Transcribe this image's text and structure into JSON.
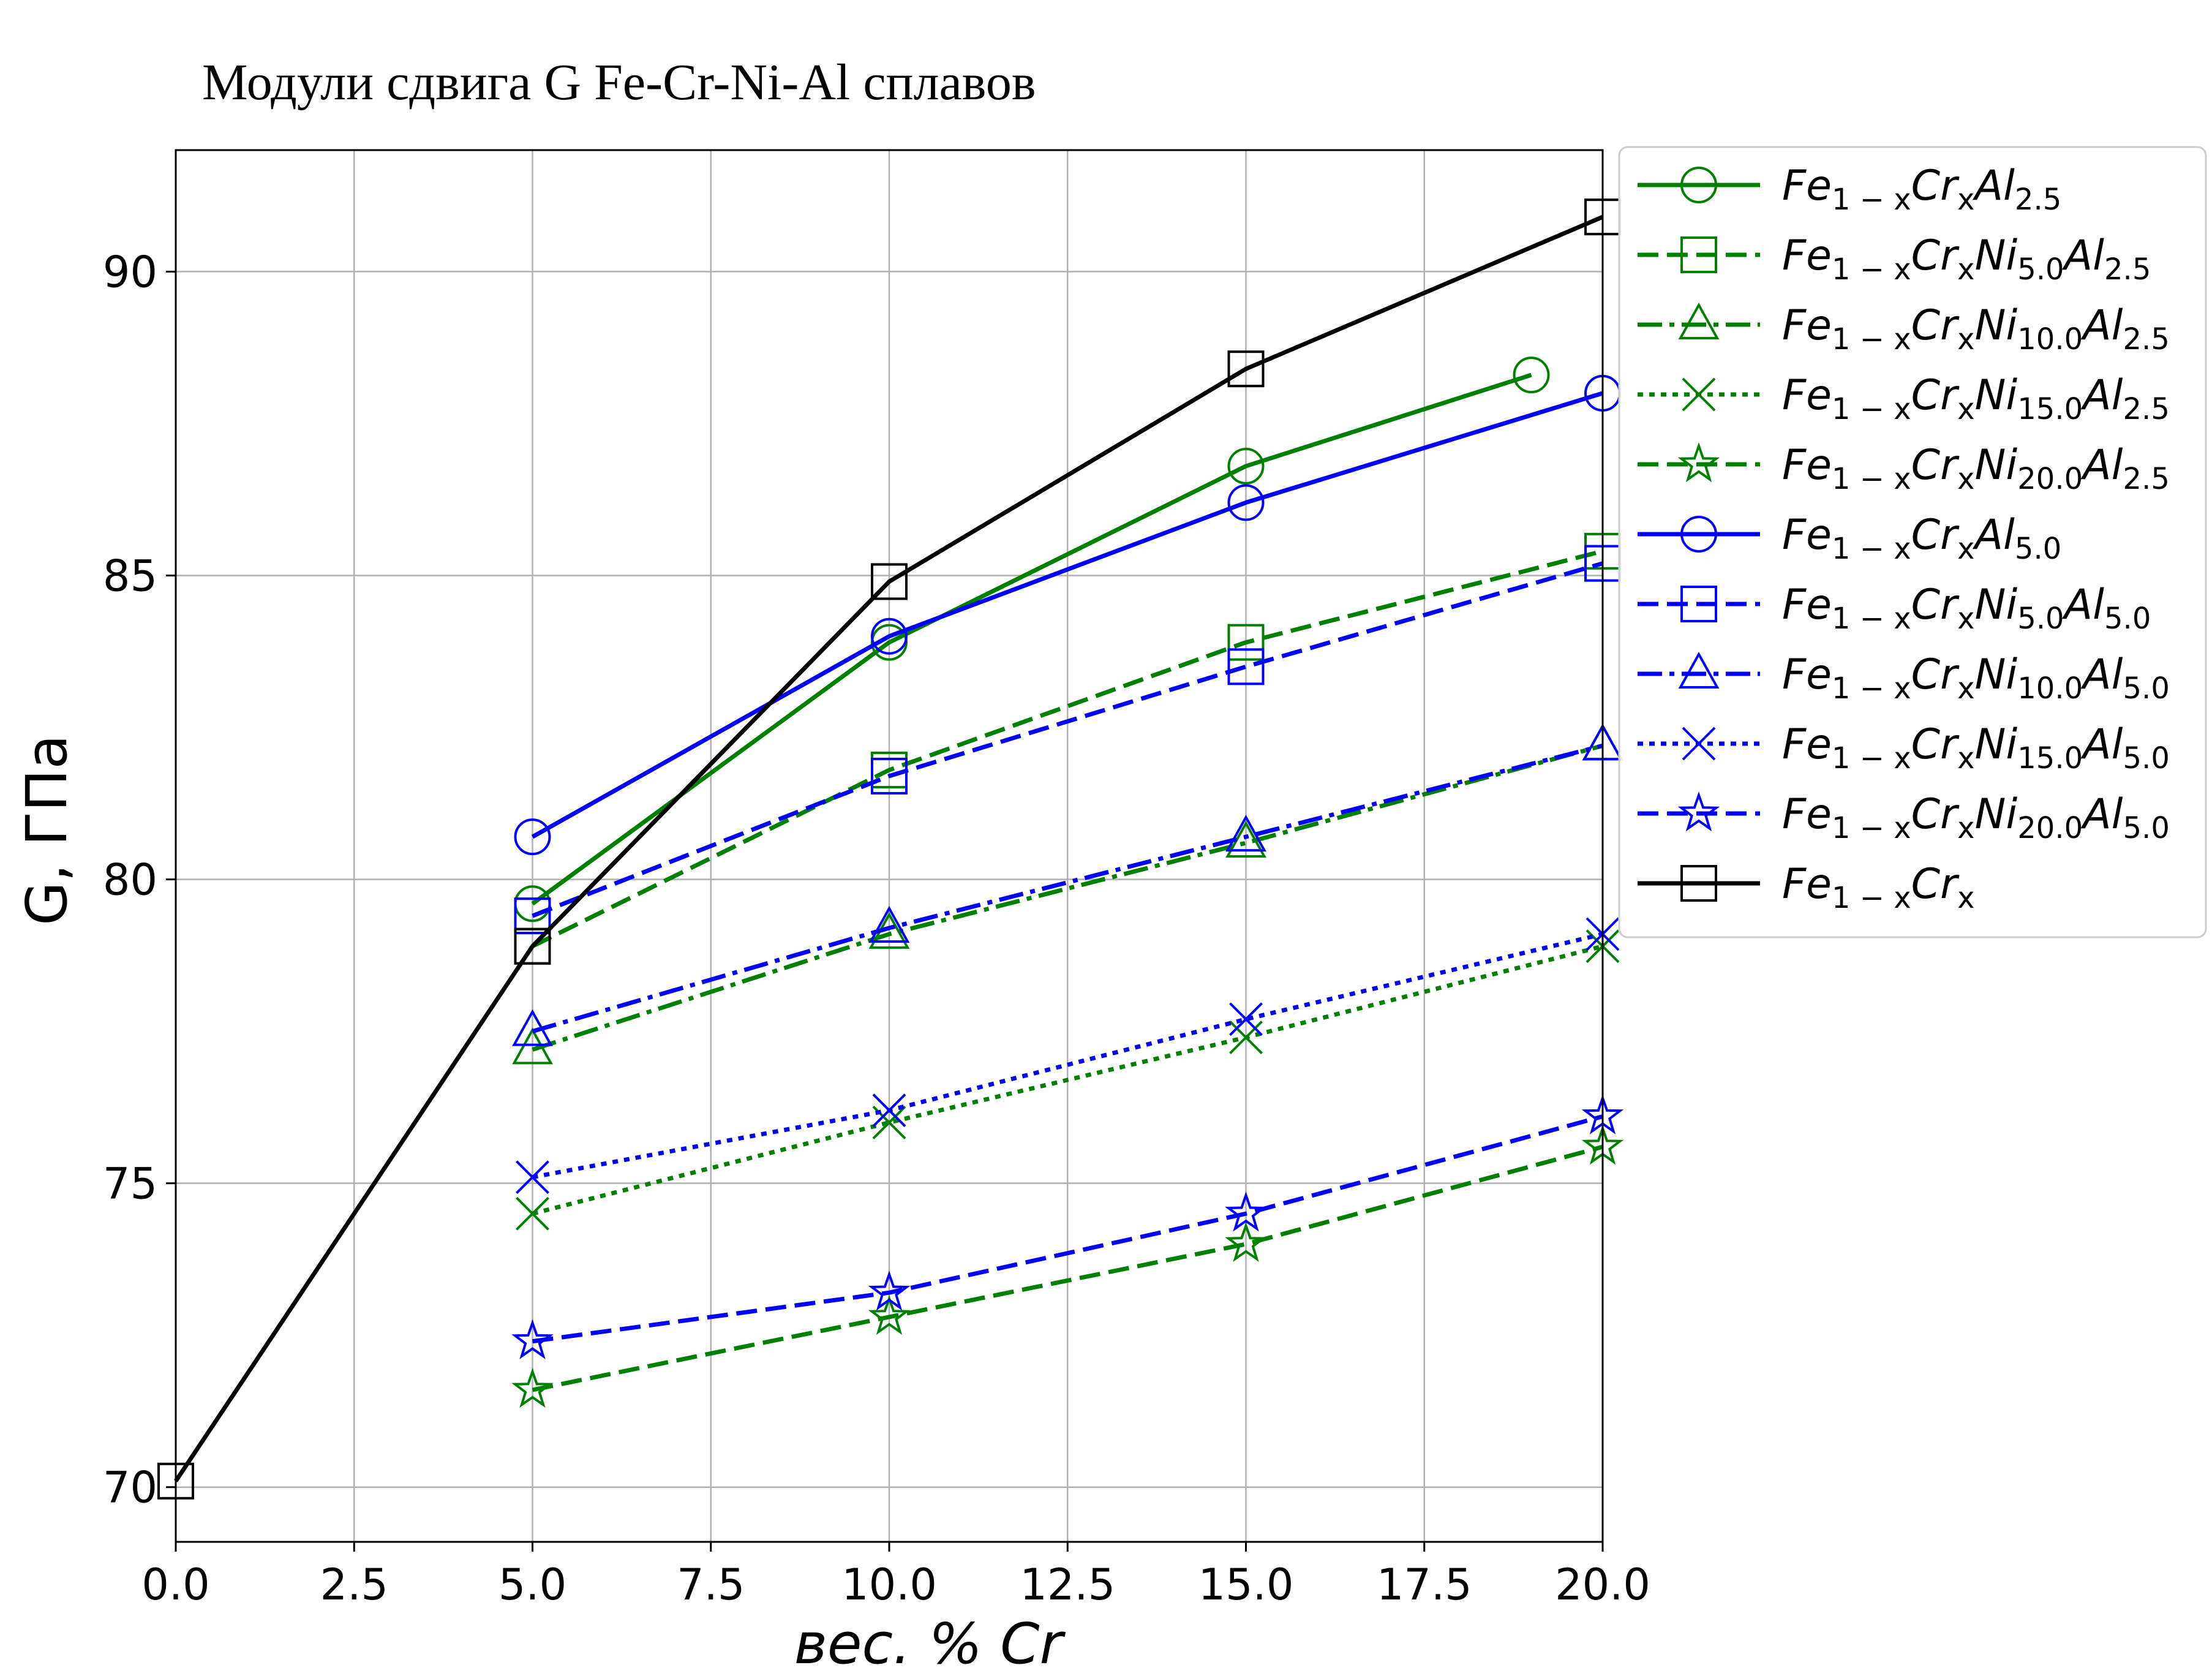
{
  "chart_data": {
    "type": "line",
    "title": "Модули сдвига G Fe-Cr-Ni-Al сплавов",
    "xlabel": "вес. % Cr",
    "ylabel": "G, ГПа",
    "xlim": [
      0,
      20
    ],
    "ylim": [
      69.1,
      92.0
    ],
    "xticks": [
      "0.0",
      "2.5",
      "5.0",
      "7.5",
      "10.0",
      "12.5",
      "15.0",
      "17.5",
      "20.0"
    ],
    "yticks": [
      "70",
      "75",
      "80",
      "85",
      "90"
    ],
    "grid": true,
    "legend_position": "outside-right-top",
    "series": [
      {
        "name": "Fe1−xCrxAl2.5",
        "name_parts": [
          [
            "Fe",
            ""
          ],
          [
            "1 − x",
            "sub"
          ],
          [
            "Cr",
            ""
          ],
          [
            "x",
            "sub"
          ],
          [
            "Al",
            ""
          ],
          [
            "2.5",
            "sub"
          ]
        ],
        "color": "#008000",
        "dash": "solid",
        "marker": "circle",
        "x": [
          5,
          10,
          15,
          19
        ],
        "y": [
          79.6,
          83.9,
          86.8,
          88.3
        ]
      },
      {
        "name": "Fe1−xCrxNi5.0Al2.5",
        "name_parts": [
          [
            "Fe",
            ""
          ],
          [
            "1 − x",
            "sub"
          ],
          [
            "Cr",
            ""
          ],
          [
            "x",
            "sub"
          ],
          [
            "Ni",
            ""
          ],
          [
            "5.0",
            "sub"
          ],
          [
            "Al",
            ""
          ],
          [
            "2.5",
            "sub"
          ]
        ],
        "color": "#008000",
        "dash": "dashed",
        "marker": "square",
        "x": [
          5,
          10,
          15,
          20
        ],
        "y": [
          78.9,
          81.8,
          83.9,
          85.4
        ]
      },
      {
        "name": "Fe1−xCrxNi10.0Al2.5",
        "name_parts": [
          [
            "Fe",
            ""
          ],
          [
            "1 − x",
            "sub"
          ],
          [
            "Cr",
            ""
          ],
          [
            "x",
            "sub"
          ],
          [
            "Ni",
            ""
          ],
          [
            "10.0",
            "sub"
          ],
          [
            "Al",
            ""
          ],
          [
            "2.5",
            "sub"
          ]
        ],
        "color": "#008000",
        "dash": "dashdot",
        "marker": "triangle",
        "x": [
          5,
          10,
          15,
          20
        ],
        "y": [
          77.2,
          79.1,
          80.6,
          82.2
        ]
      },
      {
        "name": "Fe1−xCrxNi15.0Al2.5",
        "name_parts": [
          [
            "Fe",
            ""
          ],
          [
            "1 − x",
            "sub"
          ],
          [
            "Cr",
            ""
          ],
          [
            "x",
            "sub"
          ],
          [
            "Ni",
            ""
          ],
          [
            "15.0",
            "sub"
          ],
          [
            "Al",
            ""
          ],
          [
            "2.5",
            "sub"
          ]
        ],
        "color": "#008000",
        "dash": "dotted",
        "marker": "x",
        "x": [
          5,
          10,
          15,
          20
        ],
        "y": [
          74.5,
          76.0,
          77.4,
          78.9
        ]
      },
      {
        "name": "Fe1−xCrxNi20.0Al2.5",
        "name_parts": [
          [
            "Fe",
            ""
          ],
          [
            "1 − x",
            "sub"
          ],
          [
            "Cr",
            ""
          ],
          [
            "x",
            "sub"
          ],
          [
            "Ni",
            ""
          ],
          [
            "20.0",
            "sub"
          ],
          [
            "Al",
            ""
          ],
          [
            "2.5",
            "sub"
          ]
        ],
        "color": "#008000",
        "dash": "dashed",
        "marker": "star",
        "x": [
          5,
          10,
          15,
          20
        ],
        "y": [
          71.6,
          72.8,
          74.0,
          75.6
        ]
      },
      {
        "name": "Fe1−xCrxAl5.0",
        "name_parts": [
          [
            "Fe",
            ""
          ],
          [
            "1 − x",
            "sub"
          ],
          [
            "Cr",
            ""
          ],
          [
            "x",
            "sub"
          ],
          [
            "Al",
            ""
          ],
          [
            "5.0",
            "sub"
          ]
        ],
        "color": "#0000ff",
        "dash": "solid",
        "marker": "circle",
        "x": [
          5,
          10,
          15,
          20
        ],
        "y": [
          80.7,
          84.0,
          86.2,
          88.0
        ]
      },
      {
        "name": "Fe1−xCrxNi5.0Al5.0",
        "name_parts": [
          [
            "Fe",
            ""
          ],
          [
            "1 − x",
            "sub"
          ],
          [
            "Cr",
            ""
          ],
          [
            "x",
            "sub"
          ],
          [
            "Ni",
            ""
          ],
          [
            "5.0",
            "sub"
          ],
          [
            "Al",
            ""
          ],
          [
            "5.0",
            "sub"
          ]
        ],
        "color": "#0000ff",
        "dash": "dashed",
        "marker": "square",
        "x": [
          5,
          10,
          15,
          20
        ],
        "y": [
          79.4,
          81.7,
          83.5,
          85.2
        ]
      },
      {
        "name": "Fe1−xCrxNi10.0Al5.0",
        "name_parts": [
          [
            "Fe",
            ""
          ],
          [
            "1 − x",
            "sub"
          ],
          [
            "Cr",
            ""
          ],
          [
            "x",
            "sub"
          ],
          [
            "Ni",
            ""
          ],
          [
            "10.0",
            "sub"
          ],
          [
            "Al",
            ""
          ],
          [
            "5.0",
            "sub"
          ]
        ],
        "color": "#0000ff",
        "dash": "dashdot",
        "marker": "triangle",
        "x": [
          5,
          10,
          15,
          20
        ],
        "y": [
          77.5,
          79.2,
          80.7,
          82.2
        ]
      },
      {
        "name": "Fe1−xCrxNi15.0Al5.0",
        "name_parts": [
          [
            "Fe",
            ""
          ],
          [
            "1 − x",
            "sub"
          ],
          [
            "Cr",
            ""
          ],
          [
            "x",
            "sub"
          ],
          [
            "Ni",
            ""
          ],
          [
            "15.0",
            "sub"
          ],
          [
            "Al",
            ""
          ],
          [
            "5.0",
            "sub"
          ]
        ],
        "color": "#0000ff",
        "dash": "dotted",
        "marker": "x",
        "x": [
          5,
          10,
          15,
          20
        ],
        "y": [
          75.1,
          76.2,
          77.7,
          79.1
        ]
      },
      {
        "name": "Fe1−xCrxNi20.0Al5.0",
        "name_parts": [
          [
            "Fe",
            ""
          ],
          [
            "1 − x",
            "sub"
          ],
          [
            "Cr",
            ""
          ],
          [
            "x",
            "sub"
          ],
          [
            "Ni",
            ""
          ],
          [
            "20.0",
            "sub"
          ],
          [
            "Al",
            ""
          ],
          [
            "5.0",
            "sub"
          ]
        ],
        "color": "#0000ff",
        "dash": "dashed",
        "marker": "star",
        "x": [
          5,
          10,
          15,
          20
        ],
        "y": [
          72.4,
          73.2,
          74.5,
          76.1
        ]
      },
      {
        "name": "Fe1−xCrx",
        "name_parts": [
          [
            "Fe",
            ""
          ],
          [
            "1 − x",
            "sub"
          ],
          [
            "Cr",
            ""
          ],
          [
            "x",
            "sub"
          ]
        ],
        "color": "#000000",
        "dash": "solid",
        "marker": "square",
        "x": [
          0,
          5,
          10,
          15,
          20
        ],
        "y": [
          70.1,
          78.9,
          84.9,
          88.4,
          90.9
        ]
      }
    ]
  }
}
